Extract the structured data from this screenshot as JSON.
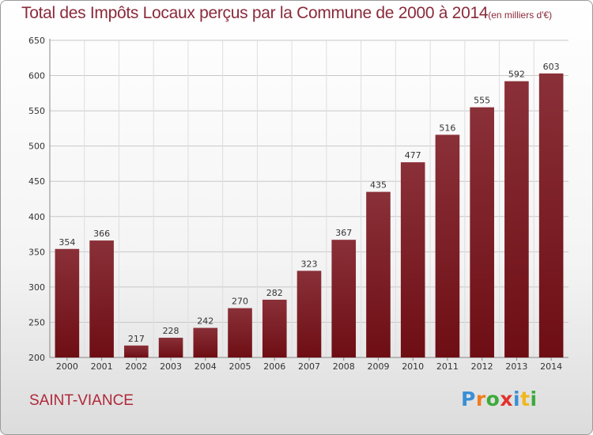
{
  "chart_data": {
    "type": "bar",
    "title": "Total des Impôts Locaux perçus par la Commune de 2000 à 2014",
    "title_unit": "(en milliers d'€)",
    "categories": [
      "2000",
      "2001",
      "2002",
      "2003",
      "2004",
      "2005",
      "2006",
      "2007",
      "2008",
      "2009",
      "2010",
      "2011",
      "2012",
      "2013",
      "2014"
    ],
    "values": [
      354,
      366,
      217,
      228,
      242,
      270,
      282,
      323,
      367,
      435,
      477,
      516,
      555,
      592,
      603
    ],
    "ylim": [
      200,
      650
    ],
    "yticks": [
      "200",
      "250",
      "300",
      "350",
      "400",
      "450",
      "500",
      "550",
      "600",
      "650"
    ],
    "grid": true,
    "xlabel": "",
    "ylabel": "",
    "bar_color": "#6e0e14",
    "bar_color_light": "#8a3038"
  },
  "footer": {
    "commune": "SAINT-VIANCE",
    "logo_letters": [
      "P",
      "r",
      "o",
      "x",
      "i",
      "t",
      "i"
    ],
    "logo_colors": [
      "#3a8fd6",
      "#f07d1e",
      "#3cab3c",
      "#e2322c",
      "#3a8fd6",
      "#f0b71e",
      "#3cab3c"
    ]
  }
}
